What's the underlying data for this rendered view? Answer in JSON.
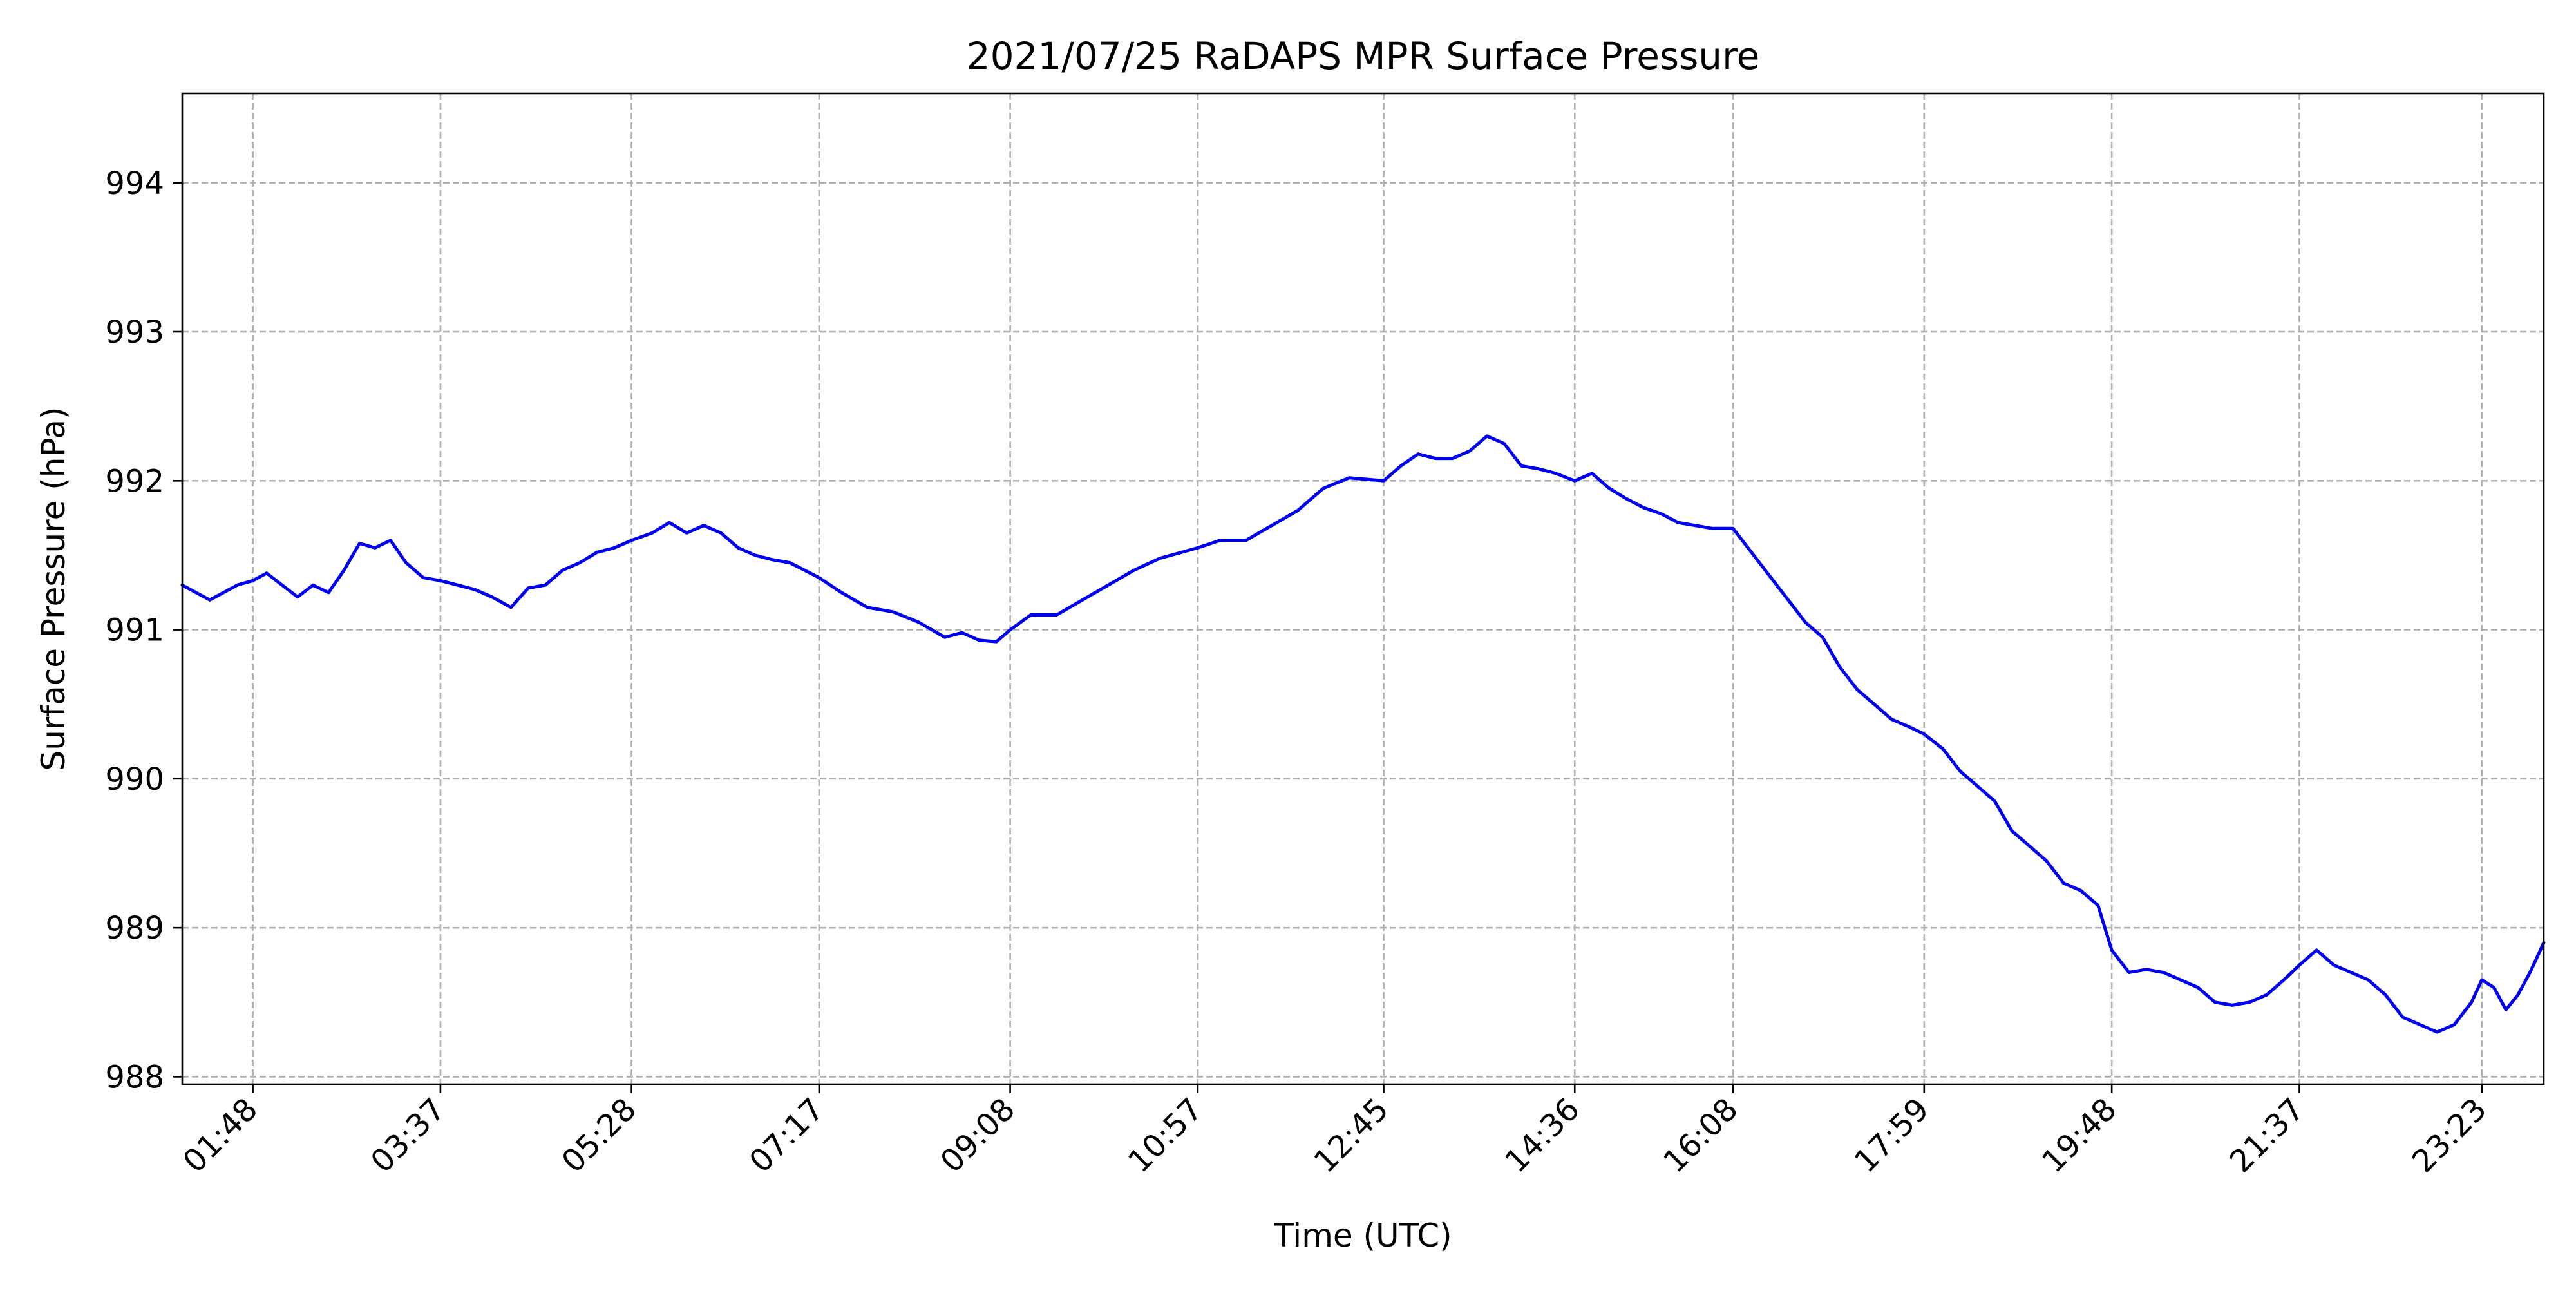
{
  "chart_data": {
    "type": "line",
    "title": "2021/07/25 RaDAPS MPR Surface Pressure",
    "xlabel": "Time (UTC)",
    "ylabel": "Surface Pressure (hPa)",
    "x_unit": "time of day (HH:MM UTC)",
    "xlim": [
      "01:07",
      "23:59"
    ],
    "ylim": [
      987.95,
      994.6
    ],
    "yticks": [
      988,
      989,
      990,
      991,
      992,
      993,
      994
    ],
    "xticks": [
      "01:48",
      "03:37",
      "05:28",
      "07:17",
      "09:08",
      "10:57",
      "12:45",
      "14:36",
      "16:08",
      "17:59",
      "19:48",
      "21:37",
      "23:23"
    ],
    "grid": true,
    "legend": "none",
    "line_color": "#0000ee",
    "series": [
      {
        "x": [
          "01:07",
          "01:15",
          "01:23",
          "01:31",
          "01:39",
          "01:48",
          "01:56",
          "02:05",
          "02:14",
          "02:23",
          "02:32",
          "02:41",
          "02:50",
          "02:59",
          "03:08",
          "03:17",
          "03:27",
          "03:37",
          "03:47",
          "03:57",
          "04:07",
          "04:18",
          "04:28",
          "04:38",
          "04:48",
          "04:58",
          "05:08",
          "05:18",
          "05:28",
          "05:40",
          "05:50",
          "06:00",
          "06:10",
          "06:20",
          "06:30",
          "06:40",
          "06:50",
          "07:00",
          "07:17",
          "07:30",
          "07:45",
          "08:00",
          "08:15",
          "08:30",
          "08:40",
          "08:50",
          "09:00",
          "09:08",
          "09:20",
          "09:35",
          "09:50",
          "10:05",
          "10:20",
          "10:35",
          "10:57",
          "11:10",
          "11:25",
          "11:40",
          "11:55",
          "12:10",
          "12:25",
          "12:45",
          "12:55",
          "13:05",
          "13:15",
          "13:25",
          "13:35",
          "13:45",
          "13:55",
          "14:05",
          "14:15",
          "14:25",
          "14:36",
          "14:46",
          "14:56",
          "15:06",
          "15:16",
          "15:26",
          "15:36",
          "15:46",
          "15:56",
          "16:08",
          "16:20",
          "16:30",
          "16:40",
          "16:50",
          "17:00",
          "17:10",
          "17:20",
          "17:30",
          "17:40",
          "17:50",
          "17:59",
          "18:10",
          "18:20",
          "18:30",
          "18:40",
          "18:50",
          "19:00",
          "19:10",
          "19:20",
          "19:30",
          "19:40",
          "19:48",
          "19:58",
          "20:08",
          "20:18",
          "20:28",
          "20:38",
          "20:48",
          "20:58",
          "21:08",
          "21:18",
          "21:28",
          "21:37",
          "21:47",
          "21:57",
          "22:07",
          "22:17",
          "22:27",
          "22:37",
          "22:47",
          "22:57",
          "23:07",
          "23:17",
          "23:23",
          "23:30",
          "23:37",
          "23:44",
          "23:51",
          "23:59"
        ],
        "values": [
          991.3,
          991.25,
          991.2,
          991.25,
          991.3,
          991.33,
          991.38,
          991.3,
          991.22,
          991.3,
          991.25,
          991.4,
          991.58,
          991.55,
          991.6,
          991.45,
          991.35,
          991.33,
          991.3,
          991.27,
          991.22,
          991.15,
          991.28,
          991.3,
          991.4,
          991.45,
          991.52,
          991.55,
          991.6,
          991.65,
          991.72,
          991.65,
          991.7,
          991.65,
          991.55,
          991.5,
          991.47,
          991.45,
          991.35,
          991.25,
          991.15,
          991.12,
          991.05,
          990.95,
          990.98,
          990.93,
          990.92,
          991.0,
          991.1,
          991.1,
          991.2,
          991.3,
          991.4,
          991.48,
          991.55,
          991.6,
          991.6,
          991.7,
          991.8,
          991.95,
          992.02,
          992.0,
          992.1,
          992.18,
          992.15,
          992.15,
          992.2,
          992.3,
          992.25,
          992.1,
          992.08,
          992.05,
          992.0,
          992.05,
          991.95,
          991.88,
          991.82,
          991.78,
          991.72,
          991.7,
          991.68,
          991.68,
          991.5,
          991.35,
          991.2,
          991.05,
          990.95,
          990.75,
          990.6,
          990.5,
          990.4,
          990.35,
          990.3,
          990.2,
          990.05,
          989.95,
          989.85,
          989.65,
          989.55,
          989.45,
          989.3,
          989.25,
          989.15,
          988.85,
          988.7,
          988.72,
          988.7,
          988.65,
          988.6,
          988.5,
          988.48,
          988.5,
          988.55,
          988.65,
          988.75,
          988.85,
          988.75,
          988.7,
          988.65,
          988.55,
          988.4,
          988.35,
          988.3,
          988.35,
          988.5,
          988.65,
          988.6,
          988.45,
          988.55,
          988.7,
          988.9
        ]
      }
    ]
  }
}
